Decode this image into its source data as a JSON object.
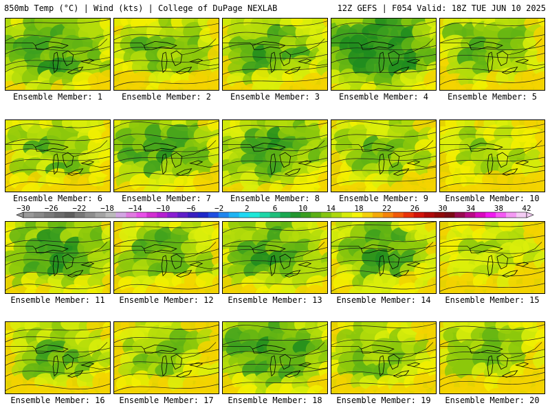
{
  "header": {
    "left": "850mb Temp (°C) | Wind (kts) | College of DuPage NEXLAB",
    "right": "12Z GEFS | F054 Valid: 18Z TUE JUN 10 2025"
  },
  "members": [
    {
      "label": "Ensemble Member: 1",
      "warmth": 0.35
    },
    {
      "label": "Ensemble Member: 2",
      "warmth": 0.55
    },
    {
      "label": "Ensemble Member: 3",
      "warmth": 0.45
    },
    {
      "label": "Ensemble Member: 4",
      "warmth": 0.15
    },
    {
      "label": "Ensemble Member: 5",
      "warmth": 0.5
    },
    {
      "label": "Ensemble Member: 6",
      "warmth": 0.55
    },
    {
      "label": "Ensemble Member: 7",
      "warmth": 0.4
    },
    {
      "label": "Ensemble Member: 8",
      "warmth": 0.35
    },
    {
      "label": "Ensemble Member: 9",
      "warmth": 0.55
    },
    {
      "label": "Ensemble Member: 10",
      "warmth": 0.7
    },
    {
      "label": "Ensemble Member: 11",
      "warmth": 0.35
    },
    {
      "label": "Ensemble Member: 12",
      "warmth": 0.5
    },
    {
      "label": "Ensemble Member: 13",
      "warmth": 0.4
    },
    {
      "label": "Ensemble Member: 14",
      "warmth": 0.45
    },
    {
      "label": "Ensemble Member: 15",
      "warmth": 0.7
    },
    {
      "label": "Ensemble Member: 16",
      "warmth": 0.5
    },
    {
      "label": "Ensemble Member: 17",
      "warmth": 0.6
    },
    {
      "label": "Ensemble Member: 18",
      "warmth": 0.3
    },
    {
      "label": "Ensemble Member: 19",
      "warmth": 0.55
    },
    {
      "label": "Ensemble Member: 20",
      "warmth": 0.6
    }
  ],
  "colorbar": {
    "labels": [
      "−30",
      "−26",
      "−22",
      "−18",
      "−14",
      "−10",
      "−6",
      "−2",
      "2",
      "6",
      "10",
      "14",
      "18",
      "22",
      "26",
      "30",
      "34",
      "38",
      "42"
    ],
    "colors": [
      "#999999",
      "#8a8a8a",
      "#7a7a7a",
      "#6b6b6b",
      "#5e5e5e",
      "#787878",
      "#8e8e8e",
      "#a4a4a4",
      "#bbbbbb",
      "#d2a6e2",
      "#e07ae0",
      "#e850e8",
      "#d230d2",
      "#b51fd2",
      "#8a1fd2",
      "#5f1fc8",
      "#3a1fc0",
      "#1f28c8",
      "#1f4ee0",
      "#1f86ee",
      "#1fb4f4",
      "#1fd8f4",
      "#1fe8d8",
      "#1fd6a8",
      "#1fbe7a",
      "#1aa850",
      "#22962e",
      "#3a9e1e",
      "#5cb016",
      "#86c612",
      "#aed80e",
      "#d6ec0a",
      "#f4f40a",
      "#f4d00a",
      "#f4aa0a",
      "#f4840a",
      "#f05a0a",
      "#e8320a",
      "#d2140a",
      "#b00a0a",
      "#900a0a",
      "#7a0a14",
      "#980a50",
      "#b80a86",
      "#d80abe",
      "#f01af0",
      "#f45af4",
      "#f49af4",
      "#f4ccf4"
    ]
  }
}
